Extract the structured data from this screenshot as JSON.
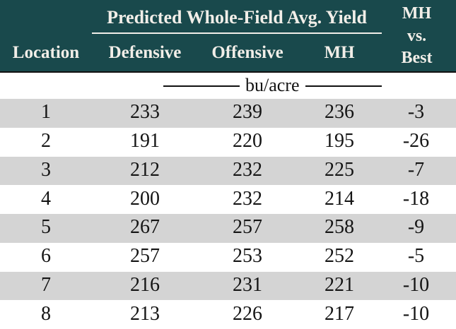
{
  "colors": {
    "header_bg": "#19494c",
    "header_text": "#f1eee8",
    "row_alt_bg": "#d4d4d4",
    "row_bg": "#ffffff",
    "data_text": "#141414",
    "rule_dark": "#111111"
  },
  "header": {
    "group_title": "Predicted Whole-Field Avg. Yield",
    "location_label": "Location",
    "sub_columns": [
      "Defensive",
      "Offensive",
      "MH"
    ],
    "mh_vs_best_lines": [
      "MH",
      "vs.",
      "Best"
    ]
  },
  "units_label": "bu/acre",
  "chart_data": {
    "type": "table",
    "title": "Predicted Whole-Field Avg. Yield",
    "units": "bu/acre",
    "columns": [
      "Location",
      "Defensive",
      "Offensive",
      "MH",
      "MH vs. Best"
    ],
    "rows": [
      [
        1,
        233,
        239,
        236,
        -3
      ],
      [
        2,
        191,
        220,
        195,
        -26
      ],
      [
        3,
        212,
        232,
        225,
        -7
      ],
      [
        4,
        200,
        232,
        214,
        -18
      ],
      [
        5,
        267,
        257,
        258,
        -9
      ],
      [
        6,
        257,
        253,
        252,
        -5
      ],
      [
        7,
        216,
        231,
        221,
        -10
      ],
      [
        8,
        213,
        226,
        217,
        -10
      ]
    ]
  }
}
